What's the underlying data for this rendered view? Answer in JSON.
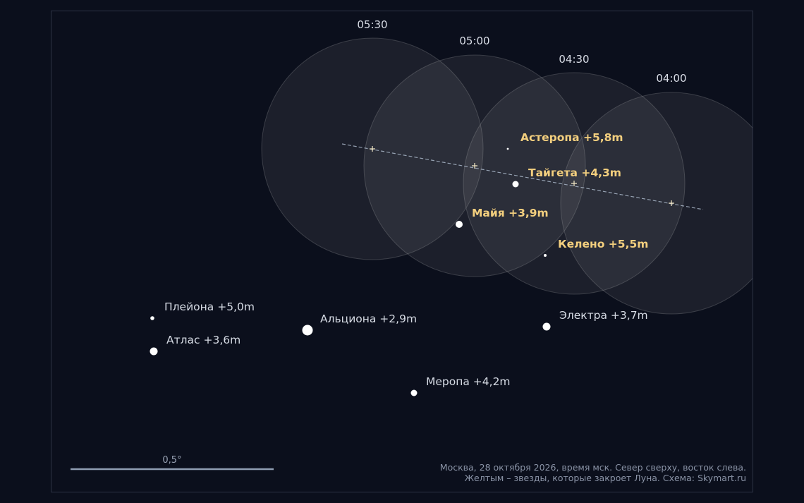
{
  "colors": {
    "background": "#0b0f1c",
    "moon_disk": "#c8c8c8",
    "path_line": "#a9b6c8",
    "star": "#ffffff",
    "label_normal": "#d6dbe4",
    "label_occulted": "#f3cf7e",
    "scale_bar": "#8f9db2"
  },
  "moon": {
    "positions": [
      {
        "time": "05:30"
      },
      {
        "time": "05:00"
      },
      {
        "time": "04:30"
      },
      {
        "time": "04:00"
      }
    ]
  },
  "stars": [
    {
      "name": "Астеропа",
      "magnitude": "+5,8m",
      "label": "Астеропа +5,8m",
      "occulted": true
    },
    {
      "name": "Тайгета",
      "magnitude": "+4,3m",
      "label": "Тайгета +4,3m",
      "occulted": true
    },
    {
      "name": "Майя",
      "magnitude": "+3,9m",
      "label": "Майя +3,9m",
      "occulted": true
    },
    {
      "name": "Келено",
      "magnitude": "+5,5m",
      "label": "Келено +5,5m",
      "occulted": true
    },
    {
      "name": "Плейона",
      "magnitude": "+5,0m",
      "label": "Плейона +5,0m",
      "occulted": false
    },
    {
      "name": "Атлас",
      "magnitude": "+3,6m",
      "label": "Атлас +3,6m",
      "occulted": false
    },
    {
      "name": "Альциона",
      "magnitude": "+2,9m",
      "label": "Альциона +2,9m",
      "occulted": false
    },
    {
      "name": "Электра",
      "magnitude": "+3,7m",
      "label": "Электра +3,7m",
      "occulted": false
    },
    {
      "name": "Меропа",
      "magnitude": "+4,2m",
      "label": "Меропа +4,2m",
      "occulted": false
    }
  ],
  "scale": {
    "label": "0,5°"
  },
  "credits": {
    "line1": "Москва, 28 октября 2026, время мск. Север сверху, восток слева.",
    "line2": "Желтым – звезды, которые закроет Луна. Схема: Skymart.ru"
  }
}
